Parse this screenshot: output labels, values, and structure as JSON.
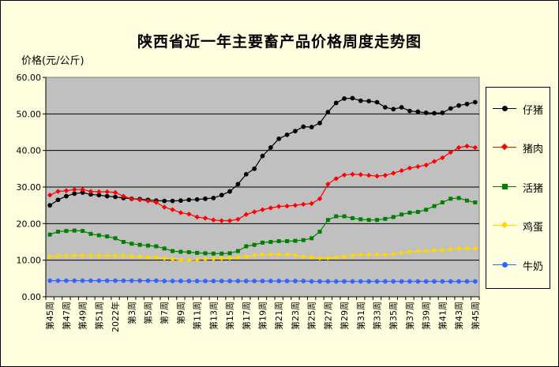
{
  "title": "陕西省近一年主要畜产品价格周度走势图",
  "ylabel": "价格(元/公斤)",
  "chart_data": {
    "type": "line",
    "ylim": [
      0,
      60
    ],
    "yticks": [
      "0.00",
      "10.00",
      "20.00",
      "30.00",
      "40.00",
      "50.00",
      "60.00"
    ],
    "grid": true,
    "legend_position": "right",
    "categories": [
      "第45周",
      "第46周",
      "第47周",
      "第48周",
      "第49周",
      "第50周",
      "第51周",
      "第52周",
      "2022年",
      "第2周",
      "第3周",
      "第4周",
      "第5周",
      "第6周",
      "第7周",
      "第8周",
      "第9周",
      "第10周",
      "第11周",
      "第12周",
      "第13周",
      "第14周",
      "第15周",
      "第16周",
      "第17周",
      "第18周",
      "第19周",
      "第20周",
      "第21周",
      "第22周",
      "第23周",
      "第24周",
      "第25周",
      "第26周",
      "第27周",
      "第28周",
      "第29周",
      "第30周",
      "第31周",
      "第32周",
      "第33周",
      "第34周",
      "第35周",
      "第36周",
      "第37周",
      "第38周",
      "第39周",
      "第40周",
      "第41周",
      "第42周",
      "第43周",
      "第44周",
      "第45周"
    ],
    "tick_labels": [
      "第45周",
      "第47周",
      "第49周",
      "第51周",
      "2022年",
      "第3周",
      "第5周",
      "第7周",
      "第9周",
      "第11周",
      "第13周",
      "第15周",
      "第17周",
      "第19周",
      "第21周",
      "第23周",
      "第25周",
      "第27周",
      "第29周",
      "第31周",
      "第33周",
      "第35周",
      "第37周",
      "第39周",
      "第41周",
      "第43周",
      "第45周"
    ],
    "series": [
      {
        "name": "仔猪",
        "color": "#000000",
        "marker": "circle",
        "values": [
          25.0,
          26.5,
          27.5,
          28.2,
          28.5,
          28.0,
          27.8,
          27.5,
          27.3,
          27.0,
          26.8,
          26.7,
          26.5,
          26.3,
          26.2,
          26.2,
          26.3,
          26.5,
          26.6,
          26.8,
          27.0,
          27.8,
          28.8,
          30.8,
          33.5,
          35.0,
          38.5,
          40.8,
          43.2,
          44.3,
          45.3,
          46.5,
          46.4,
          47.5,
          50.5,
          53.0,
          54.2,
          54.3,
          53.6,
          53.5,
          53.2,
          51.8,
          51.3,
          51.8,
          50.8,
          50.6,
          50.3,
          50.2,
          50.3,
          51.5,
          52.3,
          52.7,
          53.2
        ]
      },
      {
        "name": "猪肉",
        "color": "#ff0000",
        "marker": "diamond",
        "values": [
          27.8,
          28.8,
          29.0,
          29.3,
          29.3,
          28.8,
          28.7,
          28.7,
          28.5,
          27.5,
          26.8,
          26.5,
          26.2,
          25.8,
          24.5,
          23.8,
          23.0,
          22.6,
          21.8,
          21.5,
          21.0,
          20.8,
          20.8,
          21.2,
          22.5,
          23.2,
          23.8,
          24.3,
          24.7,
          24.8,
          25.0,
          25.3,
          25.5,
          26.8,
          30.8,
          32.3,
          33.3,
          33.5,
          33.4,
          33.2,
          33.0,
          33.2,
          33.8,
          34.5,
          35.2,
          35.6,
          36.0,
          37.0,
          38.0,
          39.5,
          40.8,
          41.2,
          40.8
        ]
      },
      {
        "name": "活猪",
        "color": "#008000",
        "marker": "square",
        "values": [
          17.0,
          17.8,
          18.0,
          18.1,
          18.0,
          17.2,
          16.8,
          16.5,
          16.0,
          15.0,
          14.5,
          14.2,
          14.0,
          13.8,
          13.2,
          12.5,
          12.3,
          12.2,
          12.0,
          11.9,
          11.8,
          11.8,
          11.9,
          12.5,
          13.8,
          14.2,
          14.8,
          15.0,
          15.2,
          15.2,
          15.3,
          15.5,
          16.0,
          17.8,
          21.0,
          22.0,
          22.0,
          21.5,
          21.2,
          21.0,
          21.0,
          21.3,
          21.8,
          22.5,
          23.0,
          23.2,
          23.8,
          24.8,
          25.8,
          26.8,
          27.0,
          26.3,
          25.8
        ]
      },
      {
        "name": "鸡蛋",
        "color": "#ffd700",
        "marker": "diamond",
        "values": [
          11.0,
          11.2,
          11.2,
          11.3,
          11.3,
          11.3,
          11.2,
          11.2,
          11.2,
          11.3,
          11.1,
          11.0,
          10.8,
          10.8,
          10.5,
          10.3,
          10.0,
          10.0,
          10.2,
          10.3,
          10.4,
          10.5,
          10.6,
          10.8,
          11.0,
          11.3,
          11.5,
          11.6,
          11.6,
          11.5,
          11.3,
          11.0,
          10.8,
          10.6,
          10.6,
          10.8,
          11.0,
          11.3,
          11.5,
          11.5,
          11.5,
          11.5,
          11.7,
          12.0,
          12.3,
          12.5,
          12.5,
          12.7,
          12.8,
          13.0,
          13.2,
          13.3,
          13.2
        ]
      },
      {
        "name": "牛奶",
        "color": "#3366ff",
        "marker": "circle",
        "values": [
          4.4,
          4.4,
          4.4,
          4.4,
          4.4,
          4.4,
          4.4,
          4.4,
          4.4,
          4.4,
          4.4,
          4.4,
          4.4,
          4.4,
          4.3,
          4.3,
          4.3,
          4.3,
          4.3,
          4.3,
          4.3,
          4.3,
          4.3,
          4.3,
          4.3,
          4.3,
          4.3,
          4.3,
          4.3,
          4.3,
          4.3,
          4.3,
          4.2,
          4.2,
          4.2,
          4.2,
          4.2,
          4.2,
          4.2,
          4.2,
          4.2,
          4.2,
          4.2,
          4.2,
          4.2,
          4.2,
          4.2,
          4.2,
          4.2,
          4.2,
          4.2,
          4.2,
          4.2
        ]
      }
    ]
  }
}
